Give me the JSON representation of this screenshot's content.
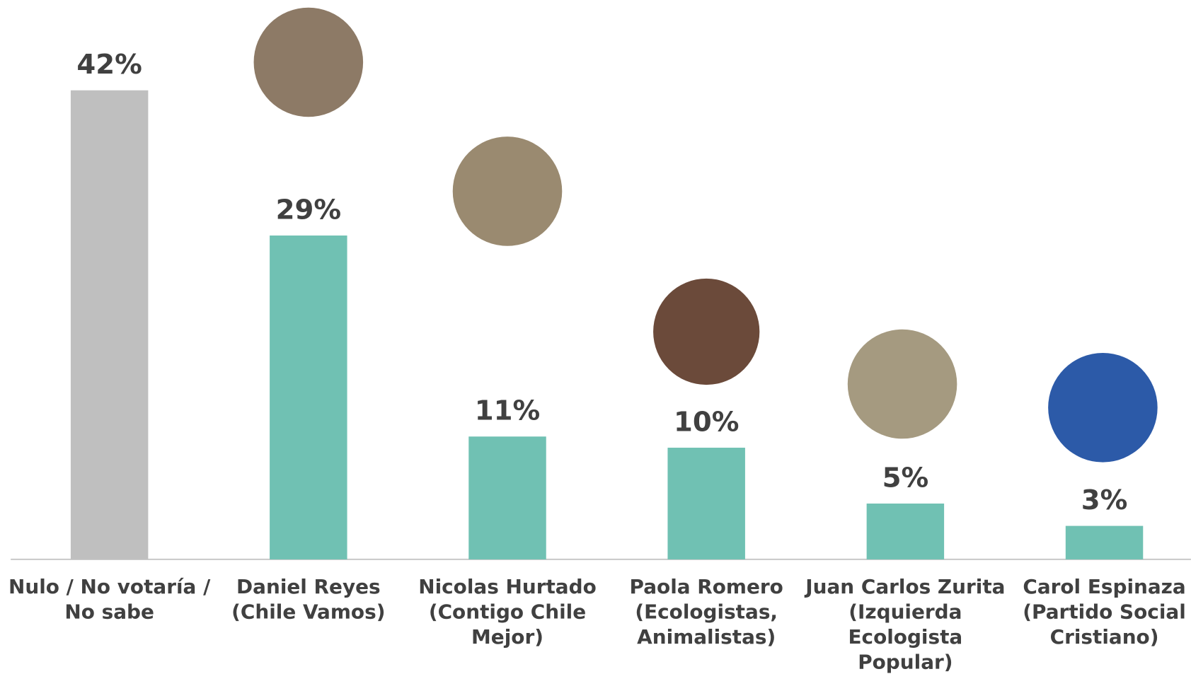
{
  "chart_data": {
    "type": "bar",
    "categories": [
      [
        "Nulo / No votaría /",
        "No sabe"
      ],
      [
        "Daniel Reyes",
        "(Chile Vamos)"
      ],
      [
        "Nicolas Hurtado",
        "(Contigo Chile",
        "Mejor)"
      ],
      [
        "Paola Romero",
        "(Ecologistas,",
        "Animalistas)"
      ],
      [
        "Juan Carlos Zurita",
        "(Izquierda",
        "Ecologista",
        "Popular)"
      ],
      [
        "Carol Espinaza",
        "(Partido Social",
        "Cristiano)"
      ]
    ],
    "values": [
      42,
      29,
      11,
      10,
      5,
      3
    ],
    "value_labels": [
      "42%",
      "29%",
      "11%",
      "10%",
      "5%",
      "3%"
    ],
    "colors": [
      "#bfbfbf",
      "#70c1b3",
      "#70c1b3",
      "#70c1b3",
      "#70c1b3",
      "#70c1b3"
    ]
  }
}
